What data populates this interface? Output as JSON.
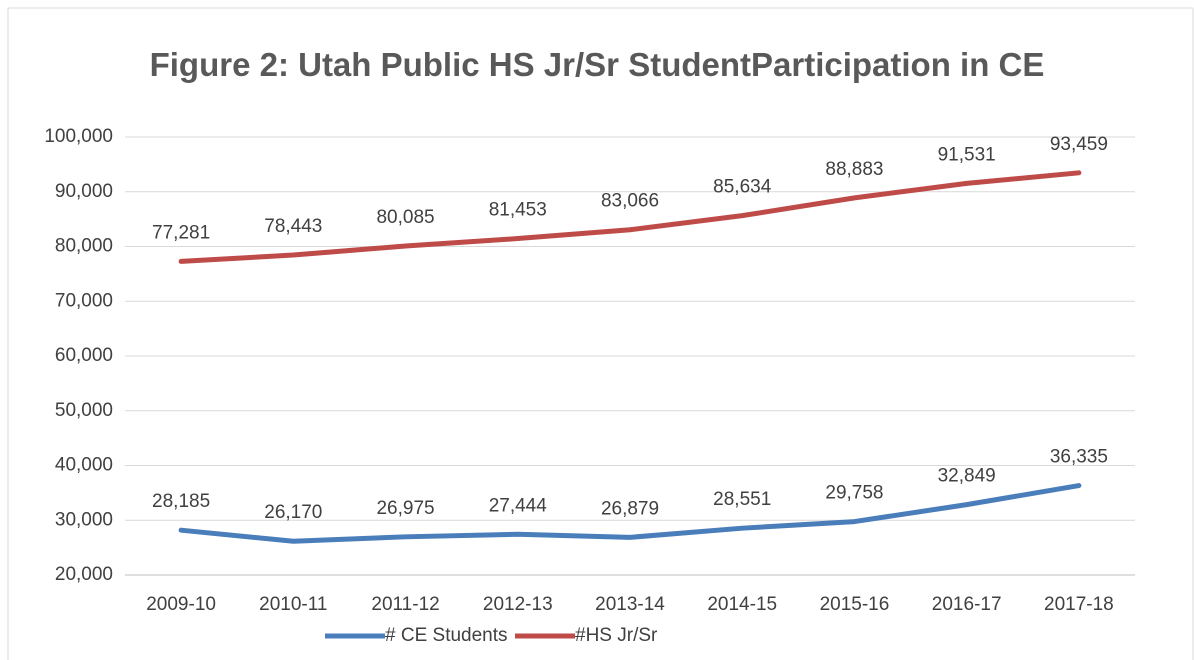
{
  "chart_data": {
    "type": "line",
    "title": "Figure 2: Utah Public HS Jr/Sr StudentParticipation in CE",
    "categories": [
      "2009-10",
      "2010-11",
      "2011-12",
      "2012-13",
      "2013-14",
      "2014-15",
      "2015-16",
      "2016-17",
      "2017-18"
    ],
    "series": [
      {
        "name": "# CE Students",
        "color": "#4a7ebb",
        "values": [
          28185,
          26170,
          26975,
          27444,
          26879,
          28551,
          29758,
          32849,
          36335
        ],
        "value_labels": [
          "28,185",
          "26,170",
          "26,975",
          "27,444",
          "26,879",
          "28,551",
          "29,758",
          "32,849",
          "36,335"
        ]
      },
      {
        "name": "#HS Jr/Sr",
        "color": "#be4b48",
        "values": [
          77281,
          78443,
          80085,
          81453,
          83066,
          85634,
          88883,
          91531,
          93459
        ],
        "value_labels": [
          "77,281",
          "78,443",
          "80,085",
          "81,453",
          "83,066",
          "85,634",
          "88,883",
          "91,531",
          "93,459"
        ]
      }
    ],
    "ylim": [
      20000,
      100000
    ],
    "yticks": [
      {
        "value": 20000,
        "label": "20,000"
      },
      {
        "value": 30000,
        "label": "30,000"
      },
      {
        "value": 40000,
        "label": "40,000"
      },
      {
        "value": 50000,
        "label": "50,000"
      },
      {
        "value": 60000,
        "label": "60,000"
      },
      {
        "value": 70000,
        "label": "70,000"
      },
      {
        "value": 80000,
        "label": "80,000"
      },
      {
        "value": 90000,
        "label": "90,000"
      },
      {
        "value": 100000,
        "label": "100,000"
      }
    ],
    "grid": true,
    "legend": "bottom"
  }
}
